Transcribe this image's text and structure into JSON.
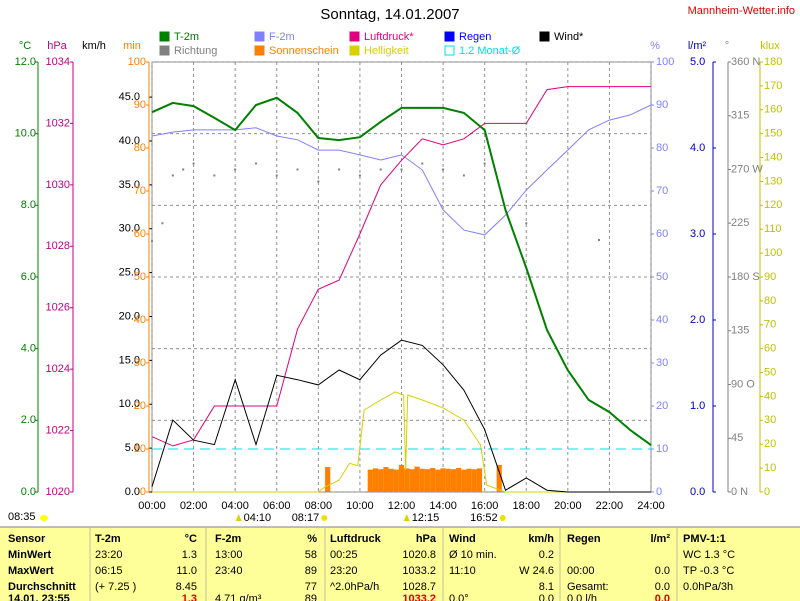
{
  "chart_data": {
    "type": "line",
    "title": "Sonntag, 14.01.2007",
    "source": "Mannheim-Wetter.info",
    "footer_time": "08:35",
    "x": [
      0,
      1,
      2,
      3,
      4,
      5,
      6,
      7,
      8,
      9,
      10,
      11,
      12,
      13,
      14,
      15,
      16,
      17,
      18,
      19,
      20,
      21,
      22,
      23,
      24
    ],
    "xlim": [
      0,
      24
    ],
    "xticks": [
      {
        "value": 0,
        "label": "00:00"
      },
      {
        "value": 2,
        "label": "02:00"
      },
      {
        "value": 4,
        "label": "04:00"
      },
      {
        "value": 6,
        "label": "06:00"
      },
      {
        "value": 8,
        "label": "08:00"
      },
      {
        "value": 10,
        "label": "10:00"
      },
      {
        "value": 12,
        "label": "12:00"
      },
      {
        "value": 14,
        "label": "14:00"
      },
      {
        "value": 16,
        "label": "16:00"
      },
      {
        "value": 18,
        "label": "18:00"
      },
      {
        "value": 20,
        "label": "20:00"
      },
      {
        "value": 22,
        "label": "22:00"
      },
      {
        "value": 24,
        "label": "24:00"
      }
    ],
    "markers": [
      {
        "x": 4.1667,
        "label": "04:10"
      },
      {
        "x": 8.2833,
        "label": "08:17"
      },
      {
        "x": 12.25,
        "label": "12:15"
      },
      {
        "x": 16.8667,
        "label": "16:52"
      }
    ],
    "axes": [
      {
        "unit": "°C",
        "color": "#008000",
        "side": "left",
        "grid": true,
        "lim": [
          0,
          12
        ],
        "ticks": [
          {
            "value": 0,
            "label": "0.0"
          },
          {
            "value": 2,
            "label": "2.0"
          },
          {
            "value": 4,
            "label": "4.0"
          },
          {
            "value": 6,
            "label": "6.0"
          },
          {
            "value": 8,
            "label": "8.0"
          },
          {
            "value": 10,
            "label": "10.0"
          },
          {
            "value": 12,
            "label": "12.0"
          }
        ],
        "series": [
          {
            "name": "T-2m",
            "type": "line",
            "color": "#008000",
            "width": 2,
            "values": [
              10.6,
              10.86,
              10.77,
              10.44,
              10.1,
              10.8,
              11.0,
              10.58,
              9.88,
              9.82,
              9.9,
              10.33,
              10.72,
              10.72,
              10.72,
              10.58,
              10.1,
              7.87,
              6.25,
              4.52,
              3.4,
              2.57,
              2.23,
              1.73,
              1.31
            ]
          }
        ]
      },
      {
        "unit": "hPa",
        "color": "#c00080",
        "side": "left",
        "lim": [
          1020,
          1034
        ],
        "ticks": [
          1020,
          1022,
          1024,
          1026,
          1028,
          1030,
          1032,
          1034
        ],
        "series": [
          {
            "name": "Luftdruck*",
            "type": "line",
            "color": "#e0007f",
            "width": 1,
            "values": [
              1021.8,
              1021.5,
              1021.7,
              1022.8,
              1022.8,
              1022.8,
              1022.8,
              1025.3,
              1026.6,
              1026.9,
              1028.4,
              1030.0,
              1030.8,
              1031.5,
              1031.3,
              1031.5,
              1032.0,
              1032.0,
              1032.0,
              1033.1,
              1033.2,
              1033.2,
              1033.2,
              1033.2,
              1033.2
            ]
          }
        ]
      },
      {
        "unit": "km/h",
        "color": "#000000",
        "side": "left",
        "lim": [
          0,
          49
        ],
        "ticks": [
          {
            "value": 0,
            "label": "0.0"
          },
          {
            "value": 5,
            "label": "5.0"
          },
          {
            "value": 10,
            "label": "10.0"
          },
          {
            "value": 15,
            "label": "15.0"
          },
          {
            "value": 20,
            "label": "20.0"
          },
          {
            "value": 25,
            "label": "25.0"
          },
          {
            "value": 30,
            "label": "30.0"
          },
          {
            "value": 35,
            "label": "35.0"
          },
          {
            "value": 40,
            "label": "40.0"
          },
          {
            "value": 45,
            "label": "45.0"
          }
        ],
        "series": [
          {
            "name": "Wind*",
            "type": "line",
            "color": "#000000",
            "width": 1,
            "values": [
              0.6,
              8.2,
              5.9,
              5.4,
              12.8,
              5.4,
              13.3,
              12.8,
              12.2,
              13.9,
              12.8,
              15.6,
              17.3,
              16.7,
              14.5,
              11.6,
              7.1,
              0.2,
              1.6,
              0.2,
              0,
              0,
              0,
              0,
              0
            ]
          }
        ]
      },
      {
        "unit": "min",
        "color": "#ff8000",
        "side": "left",
        "lim": [
          0,
          100
        ],
        "ticks": [
          0,
          10,
          20,
          30,
          40,
          50,
          60,
          70,
          80,
          90,
          100
        ],
        "series": [
          {
            "name": "Sonnenschein",
            "type": "bar",
            "color": "#ff8000",
            "x": [
              8.45,
              10.5,
              10.75,
              11,
              11.25,
              11.5,
              11.75,
              12,
              12.25,
              12.5,
              12.75,
              13,
              13.25,
              13.5,
              13.75,
              14,
              14.25,
              14.5,
              14.75,
              15,
              15.25,
              15.5,
              15.75,
              16.7
            ],
            "values": [
              5.8,
              5.2,
              5.5,
              5.3,
              5.8,
              5.4,
              5.2,
              6.3,
              5.5,
              5.3,
              5.9,
              5.4,
              5.3,
              5.6,
              5.2,
              5.5,
              5.4,
              5.3,
              5.6,
              5.2,
              5.4,
              5.3,
              5.5,
              6.3
            ]
          }
        ]
      },
      {
        "unit": "%",
        "color": "#8080ff",
        "side": "right",
        "lim": [
          0,
          100
        ],
        "ticks": [
          0,
          10,
          20,
          30,
          40,
          50,
          60,
          70,
          80,
          90,
          100
        ],
        "series": [
          {
            "name": "F-2m",
            "type": "line",
            "color": "#8080ff",
            "width": 1,
            "values": [
              82.8,
              83.7,
              84.2,
              84.2,
              84.2,
              84.7,
              82.8,
              81.9,
              79.5,
              79.5,
              78.4,
              77.2,
              78.4,
              74.9,
              65.6,
              60.9,
              59.8,
              64.4,
              70.2,
              74.9,
              79.5,
              84.2,
              86.5,
              87.7,
              90.0
            ]
          }
        ]
      },
      {
        "unit": "l/m²",
        "color": "#0000c0",
        "side": "right",
        "lim": [
          0,
          5
        ],
        "ticks": [
          {
            "value": 0,
            "label": "0.0"
          },
          {
            "value": 1,
            "label": "1.0"
          },
          {
            "value": 2,
            "label": "2.0"
          },
          {
            "value": 3,
            "label": "3.0"
          },
          {
            "value": 4,
            "label": "4.0"
          },
          {
            "value": 5,
            "label": "5.0"
          }
        ],
        "series": [
          {
            "name": "Regen",
            "type": "bar",
            "color": "#0000ff",
            "values": [
              0,
              0,
              0,
              0,
              0,
              0,
              0,
              0,
              0,
              0,
              0,
              0,
              0,
              0,
              0,
              0,
              0,
              0,
              0,
              0,
              0,
              0,
              0,
              0,
              0
            ]
          },
          {
            "name": "1.2 Monat-Ø",
            "type": "line",
            "color": "#00e0e0",
            "width": 1,
            "style": "dashed",
            "x": [
              0,
              24
            ],
            "values": [
              0.5,
              0.5
            ]
          }
        ]
      },
      {
        "unit": "°",
        "color": "#808080",
        "side": "right",
        "lim": [
          0,
          360
        ],
        "ticks": [
          {
            "value": 0,
            "label": "0 N"
          },
          45,
          {
            "value": 90,
            "label": "90 O"
          },
          135,
          {
            "value": 180,
            "label": "180 S"
          },
          225,
          {
            "value": 270,
            "label": "270 W"
          },
          315,
          {
            "value": 360,
            "label": "360 N"
          }
        ],
        "series": [
          {
            "name": "Richtung",
            "type": "scatter",
            "color": "#808080",
            "x": [
              0,
              0.5,
              1,
              1.5,
              2,
              3,
              4,
              5,
              6,
              7,
              8,
              9,
              10,
              11,
              12,
              13,
              14,
              15,
              16,
              18,
              21.5
            ],
            "values": [
              210,
              225,
              265,
              270,
              275,
              265,
              270,
              275,
              265,
              270,
              260,
              270,
              265,
              270,
              270,
              275,
              270,
              265,
              275,
              225,
              211
            ]
          }
        ]
      },
      {
        "unit": "klux",
        "color": "#c0c000",
        "side": "right",
        "lim": [
          0,
          180
        ],
        "ticks": [
          0,
          10,
          20,
          30,
          40,
          50,
          60,
          70,
          80,
          90,
          100,
          110,
          120,
          130,
          140,
          150,
          160,
          170,
          180
        ],
        "series": [
          {
            "name": "Helligkeit",
            "type": "line",
            "color": "#d8d000",
            "width": 1,
            "x": [
              0,
              8,
              8.3,
              9,
              9.5,
              9.9,
              10.2,
              11,
              11.7,
              12.1,
              12.2,
              12.3,
              13,
              14,
              15,
              15.8,
              16.1,
              17,
              24
            ],
            "values": [
              0,
              0,
              2,
              5,
              12,
              11,
              34.3,
              38.5,
              41.9,
              40.6,
              9.2,
              40.6,
              38.5,
              35.2,
              30.1,
              19.7,
              2.9,
              0,
              0
            ]
          }
        ]
      }
    ]
  },
  "table": {
    "header": [
      "Sensor",
      "T-2m",
      "°C",
      "F-2m",
      "%",
      "Luftdruck",
      "hPa",
      "Wind",
      "km/h",
      "Regen",
      "l/m²",
      "PMV-1:1"
    ],
    "rows": [
      [
        "MinWert",
        "23:20",
        "1.3",
        "13:00",
        "58",
        "00:25",
        "1020.8",
        "Ø 10 min.",
        "0.2",
        null,
        null,
        "WC 1.3 °C"
      ],
      [
        "MaxWert",
        "06:15",
        "11.0",
        "23:40",
        "89",
        "23:20",
        "1033.2",
        "11:10",
        "W 24.6",
        "00:00",
        "0.0",
        "TP -0.3 °C"
      ],
      [
        "Durchschnitt",
        "(+ 7.25 )",
        "8.45",
        null,
        "77",
        "^2.0hPa/h",
        "1028.7",
        null,
        "8.1",
        "Gesamt:",
        "0.0",
        "0.0hPa/3h"
      ],
      [
        "14.01. 23:55",
        null,
        "1.3",
        "4.71 g/m³",
        "89",
        null,
        "1033.2",
        "0.0°",
        "0.0",
        "0.0 l/h",
        "0.0",
        null
      ]
    ]
  }
}
